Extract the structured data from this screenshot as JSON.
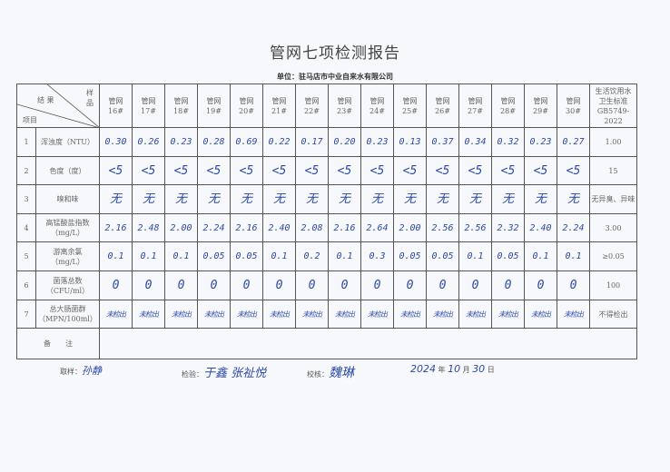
{
  "title": "管网七项检测报告",
  "unit": "单位：驻马店市中业自来水有限公司",
  "header": {
    "result": "结 果",
    "sample": "样 品",
    "item": "项目",
    "standard": [
      "生活饮用水",
      "卫生标准",
      "GB5749-2022"
    ]
  },
  "samples": [
    [
      "管网",
      "16#"
    ],
    [
      "管网",
      "17#"
    ],
    [
      "管网",
      "18#"
    ],
    [
      "管网",
      "19#"
    ],
    [
      "管网",
      "20#"
    ],
    [
      "管网",
      "21#"
    ],
    [
      "管网",
      "22#"
    ],
    [
      "管网",
      "23#"
    ],
    [
      "管网",
      "24#"
    ],
    [
      "管网",
      "25#"
    ],
    [
      "管网",
      "26#"
    ],
    [
      "管网",
      "27#"
    ],
    [
      "管网",
      "28#"
    ],
    [
      "管网",
      "29#"
    ],
    [
      "管网",
      "30#"
    ]
  ],
  "rows": [
    {
      "no": "1",
      "item": [
        "浑浊度（NTU）"
      ],
      "values": [
        "0.30",
        "0.26",
        "0.23",
        "0.28",
        "0.69",
        "0.22",
        "0.17",
        "0.20",
        "0.23",
        "0.13",
        "0.37",
        "0.34",
        "0.32",
        "0.23",
        "0.27"
      ],
      "standard": "1.00"
    },
    {
      "no": "2",
      "item": [
        "色度（度）"
      ],
      "values": [
        "<5",
        "<5",
        "<5",
        "<5",
        "<5",
        "<5",
        "<5",
        "<5",
        "<5",
        "<5",
        "<5",
        "<5",
        "<5",
        "<5",
        "<5"
      ],
      "standard": "15"
    },
    {
      "no": "3",
      "item": [
        "嗅和味"
      ],
      "values": [
        "无",
        "无",
        "无",
        "无",
        "无",
        "无",
        "无",
        "无",
        "无",
        "无",
        "无",
        "无",
        "无",
        "无",
        "无"
      ],
      "standard": "无异臭、异味"
    },
    {
      "no": "4",
      "item": [
        "高锰酸盐指数",
        "（mg/L）"
      ],
      "values": [
        "2.16",
        "2.48",
        "2.00",
        "2.24",
        "2.16",
        "2.40",
        "2.08",
        "2.16",
        "2.64",
        "2.00",
        "2.56",
        "2.56",
        "2.32",
        "2.40",
        "2.24"
      ],
      "standard": "3.00"
    },
    {
      "no": "5",
      "item": [
        "游离余氯",
        "（mg/L）"
      ],
      "values": [
        "0.1",
        "0.1",
        "0.1",
        "0.05",
        "0.05",
        "0.1",
        "0.2",
        "0.1",
        "0.3",
        "0.05",
        "0.05",
        "0.1",
        "0.05",
        "0.1",
        "0.1"
      ],
      "standard": "≥0.05"
    },
    {
      "no": "6",
      "item": [
        "菌落总数",
        "（CFU/ml）"
      ],
      "values": [
        "0",
        "0",
        "0",
        "0",
        "0",
        "0",
        "0",
        "0",
        "0",
        "0",
        "0",
        "0",
        "0",
        "0",
        "0"
      ],
      "standard": "100"
    },
    {
      "no": "7",
      "item": [
        "总大肠菌群",
        "（MPN/100ml）"
      ],
      "values": [
        "未检出",
        "未检出",
        "未检出",
        "未检出",
        "未检出",
        "未检出",
        "未检出",
        "未检出",
        "未检出",
        "未检出",
        "未检出",
        "未检出",
        "未检出",
        "未检出",
        "未检出"
      ],
      "standard": "不得检出"
    }
  ],
  "remarks_label": "备　　注",
  "footer": {
    "sampler_label": "取样：",
    "sampler": "孙静",
    "inspector_label": "检验：",
    "inspectors": "于鑫 张祉悦",
    "checker_label": "校核：",
    "checker": "魏琳",
    "date_year": "2024",
    "year": "年",
    "date_month": "10",
    "month": "月",
    "date_day": "30",
    "day": "日"
  }
}
